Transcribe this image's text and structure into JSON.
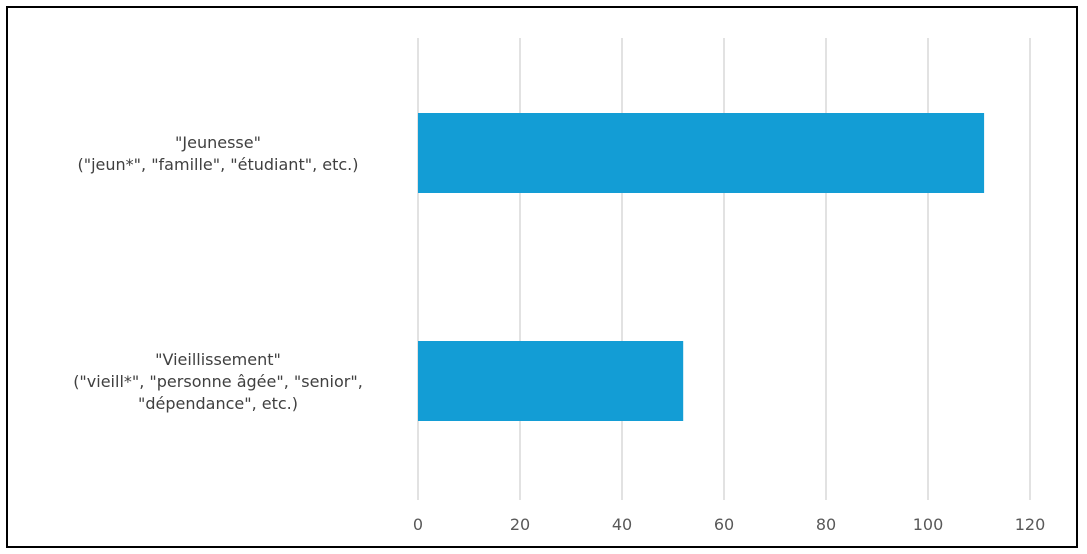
{
  "chart_data": {
    "type": "bar",
    "orientation": "horizontal",
    "categories": [
      [
        "\"Jeunesse\"",
        "(\"jeun*\", \"famille\", \"étudiant\", etc.)"
      ],
      [
        "\"Vieillissement\"",
        "(\"vieill*\", \"personne âgée\", \"senior\",",
        "\"dépendance\", etc.)"
      ]
    ],
    "values": [
      111,
      52
    ],
    "xlim": [
      0,
      120
    ],
    "xticks": [
      "0",
      "20",
      "40",
      "60",
      "80",
      "100",
      "120"
    ],
    "grid": true,
    "legend": "none",
    "title": "",
    "xlabel": "",
    "ylabel": "",
    "colors": {
      "bar": "#139dd5",
      "grid": "#d9d9d9",
      "tick_text": "#595959",
      "category_text": "#404040"
    }
  }
}
